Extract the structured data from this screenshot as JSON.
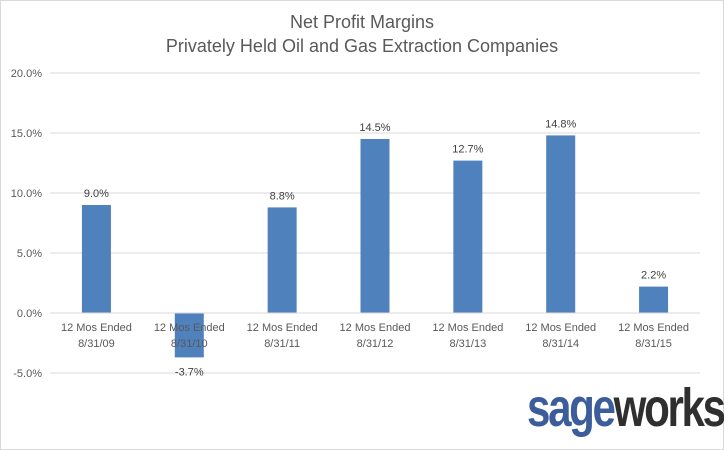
{
  "chart_data": {
    "type": "bar",
    "title": [
      "Net Profit Margins",
      "Privately Held Oil and Gas Extraction Companies"
    ],
    "categories": [
      [
        "12 Mos Ended",
        "8/31/09"
      ],
      [
        "12 Mos Ended",
        "8/31/10"
      ],
      [
        "12 Mos Ended",
        "8/31/11"
      ],
      [
        "12 Mos Ended",
        "8/31/12"
      ],
      [
        "12 Mos Ended",
        "8/31/13"
      ],
      [
        "12 Mos Ended",
        "8/31/14"
      ],
      [
        "12 Mos Ended",
        "8/31/15"
      ]
    ],
    "values": [
      9.0,
      -3.7,
      8.8,
      14.5,
      12.7,
      14.8,
      2.2
    ],
    "data_labels": [
      "9.0%",
      "-3.7%",
      "8.8%",
      "14.5%",
      "12.7%",
      "14.8%",
      "2.2%"
    ],
    "y_ticks": [
      -5,
      0,
      5,
      10,
      15,
      20
    ],
    "y_tick_labels": [
      "-5.0%",
      "0.0%",
      "5.0%",
      "10.0%",
      "15.0%",
      "20.0%"
    ],
    "ylim": [
      -5,
      20
    ],
    "xlabel": "",
    "ylabel": "",
    "grid": true,
    "legend": "none",
    "bar_color": "#4f81bd",
    "grid_color": "#d9d9d9",
    "text_color": "#595959"
  },
  "watermark": {
    "part1": "sage",
    "part2": "works",
    "mark": "®"
  }
}
